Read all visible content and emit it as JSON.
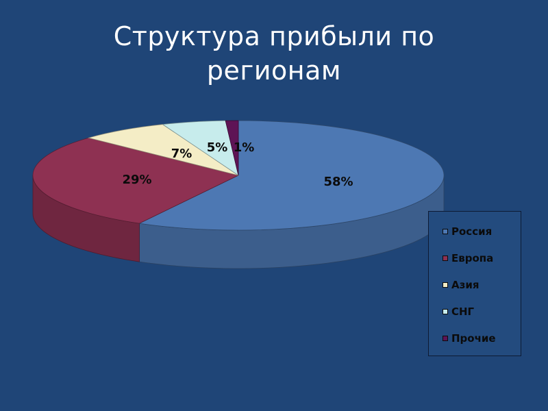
{
  "slide": {
    "title_line1": "Структура прибыли по",
    "title_line2": "регионам"
  },
  "chart_data": {
    "type": "pie",
    "style": "3d-exploded-view",
    "categories": [
      "Россия",
      "Европа",
      "Азия",
      "СНГ",
      "Прочие"
    ],
    "values": [
      58,
      29,
      7,
      5,
      1
    ],
    "data_labels": [
      "58%",
      "29%",
      "7%",
      "5%",
      "1%"
    ],
    "colors": [
      "#4d78b3",
      "#8e3152",
      "#f4edc6",
      "#c7ecec",
      "#5e1455"
    ],
    "legend_position": "right"
  }
}
